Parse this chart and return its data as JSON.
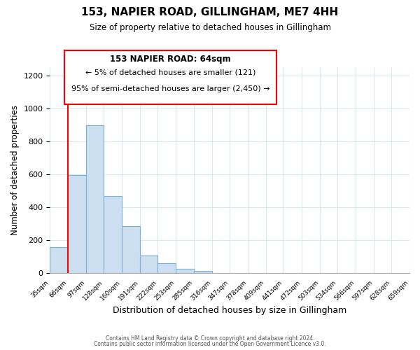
{
  "title": "153, NAPIER ROAD, GILLINGHAM, ME7 4HH",
  "subtitle": "Size of property relative to detached houses in Gillingham",
  "xlabel": "Distribution of detached houses by size in Gillingham",
  "ylabel": "Number of detached properties",
  "bar_values": [
    155,
    595,
    895,
    465,
    285,
    105,
    60,
    25,
    10,
    0,
    0,
    0,
    0,
    0,
    0,
    0,
    0,
    0,
    0,
    0
  ],
  "bar_color": "#ccdff0",
  "bar_edge_color": "#7ab0d4",
  "x_labels": [
    "35sqm",
    "66sqm",
    "97sqm",
    "128sqm",
    "160sqm",
    "191sqm",
    "222sqm",
    "253sqm",
    "285sqm",
    "316sqm",
    "347sqm",
    "378sqm",
    "409sqm",
    "441sqm",
    "472sqm",
    "503sqm",
    "534sqm",
    "566sqm",
    "597sqm",
    "628sqm",
    "659sqm"
  ],
  "ylim": [
    0,
    1250
  ],
  "yticks": [
    0,
    200,
    400,
    600,
    800,
    1000,
    1200
  ],
  "annotation_title": "153 NAPIER ROAD: 64sqm",
  "annotation_line1": "← 5% of detached houses are smaller (121)",
  "annotation_line2": "95% of semi-detached houses are larger (2,450) →",
  "footer_line1": "Contains HM Land Registry data © Crown copyright and database right 2024.",
  "footer_line2": "Contains public sector information licensed under the Open Government Licence v3.0.",
  "background_color": "#ffffff",
  "grid_color": "#dce8f0"
}
